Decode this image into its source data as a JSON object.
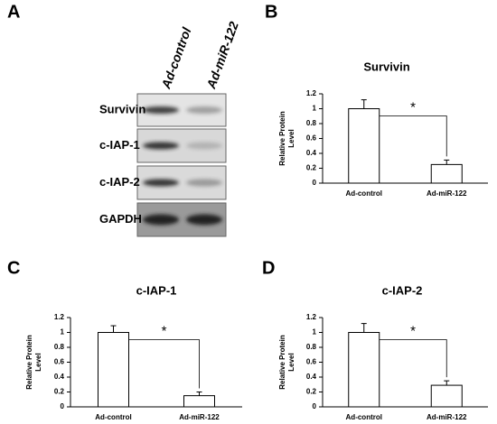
{
  "blot": {
    "panel": "A",
    "lanes": [
      "Ad-control",
      "Ad-miR-122"
    ],
    "rows": [
      "Survivin",
      "c-IAP-1",
      "c-IAP-2",
      "GAPDH"
    ]
  },
  "chart_data": [
    {
      "type": "bar",
      "panel": "B",
      "title": "Survivin",
      "ylabel": "Relative Protein Level",
      "categories": [
        "Ad-control",
        "Ad-miR-122"
      ],
      "values": [
        1.0,
        0.25
      ],
      "errors": [
        0.12,
        0.06
      ],
      "color": "#ffffff",
      "ylim": [
        0,
        1.2
      ],
      "yticks": [
        0,
        0.2,
        0.4,
        0.6,
        0.8,
        1,
        1.2
      ],
      "annotation": "*"
    },
    {
      "type": "bar",
      "panel": "C",
      "title": "c-IAP-1",
      "ylabel": "Relative Protein Level",
      "categories": [
        "Ad-control",
        "Ad-miR-122"
      ],
      "values": [
        1.0,
        0.15
      ],
      "errors": [
        0.09,
        0.05
      ],
      "color": "#ffffff",
      "ylim": [
        0,
        1.2
      ],
      "yticks": [
        0,
        0.2,
        0.4,
        0.6,
        0.8,
        1,
        1.2
      ],
      "annotation": "*"
    },
    {
      "type": "bar",
      "panel": "D",
      "title": "c-IAP-2",
      "ylabel": "Relative Protein Level",
      "categories": [
        "Ad-control",
        "Ad-miR-122"
      ],
      "values": [
        1.0,
        0.29
      ],
      "errors": [
        0.12,
        0.06
      ],
      "color": "#ffffff",
      "ylim": [
        0,
        1.2
      ],
      "yticks": [
        0,
        0.2,
        0.4,
        0.6,
        0.8,
        1,
        1.2
      ],
      "annotation": "*"
    }
  ]
}
